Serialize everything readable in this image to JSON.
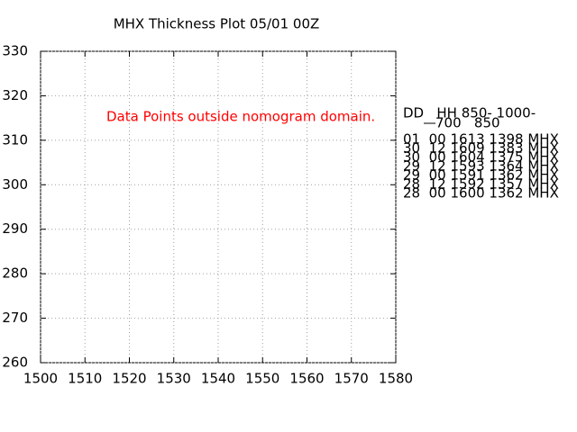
{
  "chart_data": {
    "type": "scatter",
    "title": "MHX Thickness Plot 05/01 00Z",
    "xlim": [
      1500,
      1580
    ],
    "xticks": [
      1500,
      1510,
      1520,
      1530,
      1540,
      1550,
      1560,
      1570,
      1580
    ],
    "ylim": [
      260,
      330
    ],
    "yticks": [
      260,
      270,
      280,
      290,
      300,
      310,
      320,
      330
    ],
    "grid": true,
    "annotation": "Data Points outside nomogram domain.",
    "annotation_color": "#ff0000",
    "table": {
      "header": [
        "DD   HH 850- 1000-",
        "700   850"
      ],
      "rows": [
        "01  00 1613 1398 MHX",
        "30  12 1609 1383 MHX",
        "30  00 1604 1375 MHX",
        "29  12 1593 1364 MHX",
        "29  00 1591 1362 MHX",
        "28  12 1592 1357 MHX",
        "28  00 1600 1362 MHX"
      ]
    }
  }
}
